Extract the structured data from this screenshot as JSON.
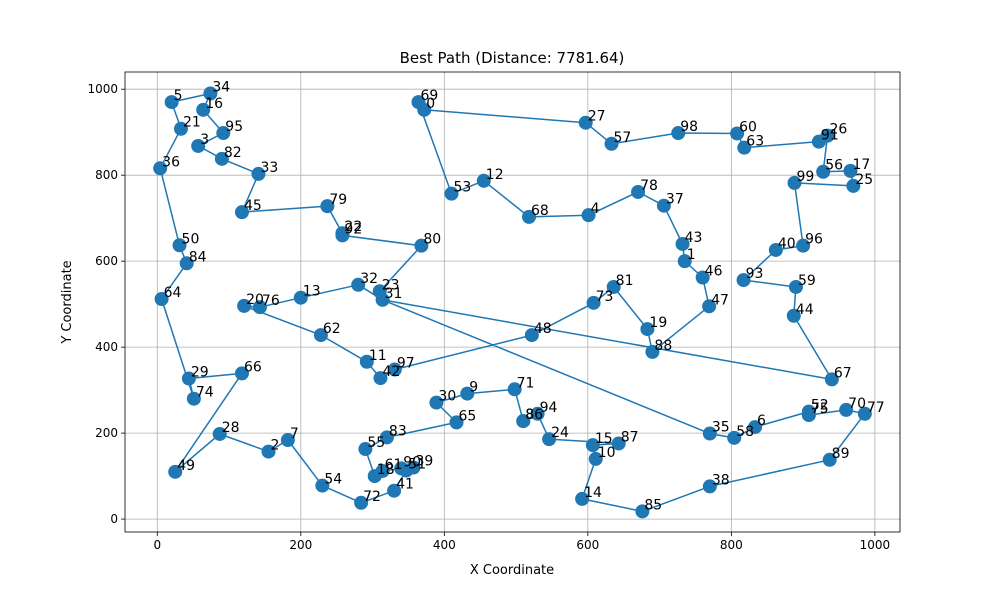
{
  "chart_data": {
    "type": "scatter",
    "title": "Best Path (Distance: 7781.64)",
    "xlabel": "X Coordinate",
    "ylabel": "Y Coordinate",
    "xlim": [
      -45,
      1035
    ],
    "ylim": [
      -30,
      1040
    ],
    "xticks": [
      0,
      200,
      400,
      600,
      800,
      1000
    ],
    "yticks": [
      0,
      200,
      400,
      600,
      800,
      1000
    ],
    "grid": true,
    "colors": {
      "marker": "#1f77b4",
      "line": "#1f77b4",
      "grid": "#b0b0b0"
    },
    "cities": [
      {
        "id": "0",
        "x": 372,
        "y": 952
      },
      {
        "id": "1",
        "x": 735,
        "y": 600
      },
      {
        "id": "2",
        "x": 155,
        "y": 157
      },
      {
        "id": "3",
        "x": 57,
        "y": 868
      },
      {
        "id": "4",
        "x": 601,
        "y": 707
      },
      {
        "id": "5",
        "x": 20,
        "y": 970
      },
      {
        "id": "6",
        "x": 833,
        "y": 214
      },
      {
        "id": "7",
        "x": 182,
        "y": 184
      },
      {
        "id": "8",
        "x": 510,
        "y": 228
      },
      {
        "id": "9",
        "x": 432,
        "y": 292
      },
      {
        "id": "10",
        "x": 611,
        "y": 140
      },
      {
        "id": "11",
        "x": 292,
        "y": 366
      },
      {
        "id": "12",
        "x": 455,
        "y": 787
      },
      {
        "id": "13",
        "x": 200,
        "y": 515
      },
      {
        "id": "14",
        "x": 592,
        "y": 47
      },
      {
        "id": "15",
        "x": 607,
        "y": 172
      },
      {
        "id": "16",
        "x": 64,
        "y": 952
      },
      {
        "id": "17",
        "x": 966,
        "y": 810
      },
      {
        "id": "18",
        "x": 303,
        "y": 100
      },
      {
        "id": "19",
        "x": 683,
        "y": 442
      },
      {
        "id": "20",
        "x": 121,
        "y": 496
      },
      {
        "id": "21",
        "x": 33,
        "y": 908
      },
      {
        "id": "22",
        "x": 258,
        "y": 665
      },
      {
        "id": "23",
        "x": 310,
        "y": 530
      },
      {
        "id": "24",
        "x": 546,
        "y": 186
      },
      {
        "id": "25",
        "x": 970,
        "y": 775
      },
      {
        "id": "26",
        "x": 934,
        "y": 892
      },
      {
        "id": "27",
        "x": 597,
        "y": 922
      },
      {
        "id": "28",
        "x": 87,
        "y": 198
      },
      {
        "id": "29",
        "x": 44,
        "y": 327
      },
      {
        "id": "30",
        "x": 389,
        "y": 271
      },
      {
        "id": "31",
        "x": 314,
        "y": 510
      },
      {
        "id": "32",
        "x": 280,
        "y": 545
      },
      {
        "id": "33",
        "x": 141,
        "y": 803
      },
      {
        "id": "34",
        "x": 74,
        "y": 990
      },
      {
        "id": "35",
        "x": 770,
        "y": 199
      },
      {
        "id": "36",
        "x": 4,
        "y": 816
      },
      {
        "id": "37",
        "x": 706,
        "y": 729
      },
      {
        "id": "38",
        "x": 770,
        "y": 76
      },
      {
        "id": "39",
        "x": 357,
        "y": 120
      },
      {
        "id": "40",
        "x": 862,
        "y": 626
      },
      {
        "id": "41",
        "x": 330,
        "y": 66
      },
      {
        "id": "42",
        "x": 311,
        "y": 328
      },
      {
        "id": "43",
        "x": 732,
        "y": 640
      },
      {
        "id": "44",
        "x": 887,
        "y": 473
      },
      {
        "id": "45",
        "x": 118,
        "y": 714
      },
      {
        "id": "46",
        "x": 760,
        "y": 562
      },
      {
        "id": "47",
        "x": 769,
        "y": 495
      },
      {
        "id": "48",
        "x": 522,
        "y": 428
      },
      {
        "id": "49",
        "x": 25,
        "y": 110
      },
      {
        "id": "50",
        "x": 31,
        "y": 637
      },
      {
        "id": "51",
        "x": 347,
        "y": 113
      },
      {
        "id": "52",
        "x": 908,
        "y": 250
      },
      {
        "id": "53",
        "x": 410,
        "y": 757
      },
      {
        "id": "54",
        "x": 230,
        "y": 78
      },
      {
        "id": "55",
        "x": 290,
        "y": 163
      },
      {
        "id": "56",
        "x": 928,
        "y": 808
      },
      {
        "id": "57",
        "x": 633,
        "y": 873
      },
      {
        "id": "58",
        "x": 804,
        "y": 189
      },
      {
        "id": "59",
        "x": 890,
        "y": 540
      },
      {
        "id": "60",
        "x": 808,
        "y": 897
      },
      {
        "id": "61",
        "x": 314,
        "y": 112
      },
      {
        "id": "62",
        "x": 228,
        "y": 428
      },
      {
        "id": "63",
        "x": 818,
        "y": 864
      },
      {
        "id": "64",
        "x": 6,
        "y": 512
      },
      {
        "id": "65",
        "x": 417,
        "y": 225
      },
      {
        "id": "66",
        "x": 118,
        "y": 339
      },
      {
        "id": "67",
        "x": 940,
        "y": 325
      },
      {
        "id": "68",
        "x": 518,
        "y": 703
      },
      {
        "id": "69",
        "x": 364,
        "y": 970
      },
      {
        "id": "70",
        "x": 960,
        "y": 254
      },
      {
        "id": "71",
        "x": 498,
        "y": 302
      },
      {
        "id": "72",
        "x": 284,
        "y": 38
      },
      {
        "id": "73",
        "x": 608,
        "y": 503
      },
      {
        "id": "74",
        "x": 51,
        "y": 280
      },
      {
        "id": "75",
        "x": 908,
        "y": 242
      },
      {
        "id": "76",
        "x": 143,
        "y": 493
      },
      {
        "id": "77",
        "x": 986,
        "y": 245
      },
      {
        "id": "78",
        "x": 670,
        "y": 761
      },
      {
        "id": "79",
        "x": 237,
        "y": 728
      },
      {
        "id": "80",
        "x": 368,
        "y": 636
      },
      {
        "id": "81",
        "x": 636,
        "y": 540
      },
      {
        "id": "82",
        "x": 90,
        "y": 838
      },
      {
        "id": "83",
        "x": 320,
        "y": 190
      },
      {
        "id": "84",
        "x": 41,
        "y": 595
      },
      {
        "id": "85",
        "x": 676,
        "y": 18
      },
      {
        "id": "86",
        "x": 510,
        "y": 228
      },
      {
        "id": "87",
        "x": 643,
        "y": 176
      },
      {
        "id": "88",
        "x": 690,
        "y": 389
      },
      {
        "id": "89",
        "x": 937,
        "y": 138
      },
      {
        "id": "90",
        "x": 340,
        "y": 118
      },
      {
        "id": "91",
        "x": 922,
        "y": 878
      },
      {
        "id": "92",
        "x": 258,
        "y": 660
      },
      {
        "id": "93",
        "x": 817,
        "y": 556
      },
      {
        "id": "94",
        "x": 530,
        "y": 245
      },
      {
        "id": "95",
        "x": 92,
        "y": 898
      },
      {
        "id": "96",
        "x": 900,
        "y": 636
      },
      {
        "id": "97",
        "x": 331,
        "y": 348
      },
      {
        "id": "98",
        "x": 726,
        "y": 898
      },
      {
        "id": "99",
        "x": 888,
        "y": 782
      }
    ],
    "route": [
      "69",
      "0",
      "27",
      "57",
      "98",
      "60",
      "63",
      "91",
      "26",
      "56",
      "17",
      "25",
      "99",
      "96",
      "40",
      "93",
      "59",
      "44",
      "67",
      "31",
      "35",
      "58",
      "6",
      "52",
      "75",
      "70",
      "77",
      "89",
      "38",
      "85",
      "14",
      "10",
      "15",
      "87",
      "24",
      "94",
      "8",
      "86",
      "71",
      "9",
      "30",
      "65",
      "83",
      "55",
      "18",
      "61",
      "90",
      "39",
      "51",
      "41",
      "72",
      "54",
      "7",
      "2",
      "28",
      "49",
      "66",
      "29",
      "74",
      "64",
      "84",
      "50",
      "36",
      "21",
      "5",
      "34",
      "16",
      "95",
      "3",
      "82",
      "33",
      "45",
      "79",
      "22",
      "92",
      "80",
      "23",
      "31",
      "32",
      "13",
      "76",
      "20",
      "62",
      "11",
      "42",
      "97",
      "48",
      "73",
      "81",
      "19",
      "88",
      "47",
      "46",
      "1",
      "43",
      "37",
      "78",
      "4",
      "68",
      "12",
      "53",
      "69"
    ]
  }
}
